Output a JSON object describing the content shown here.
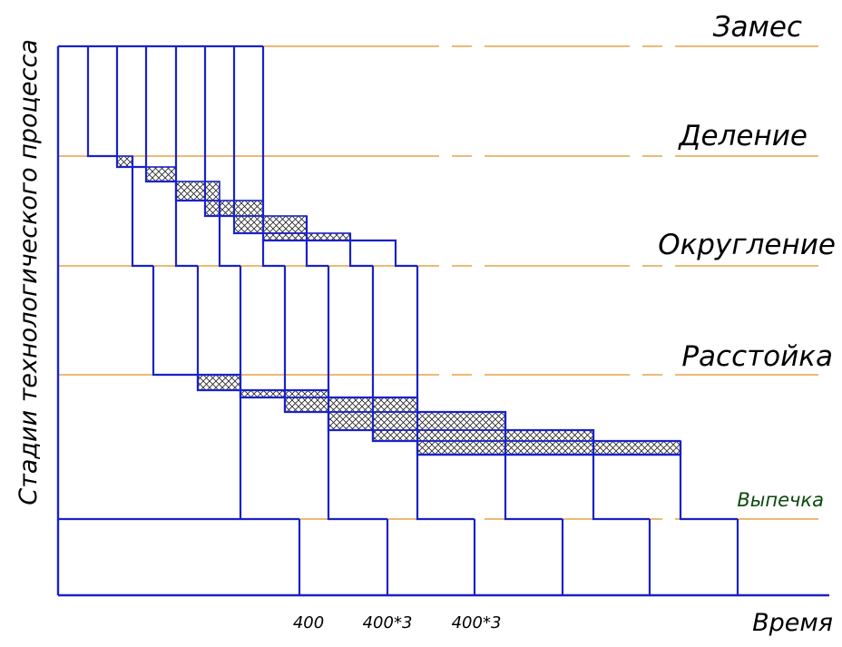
{
  "stages": {
    "zames": "Замес",
    "delenie": "Деление",
    "okruglenie": "Округление",
    "rasstoyka": "Расстойка",
    "vypechka": "Выпечка"
  },
  "axes": {
    "y_title": "Стадии технологического процесса",
    "x_title": "Время"
  },
  "ticks": [
    "400",
    "400*3",
    "400*3"
  ],
  "colors": {
    "lines": "#1a22c8",
    "guides": "#e09020",
    "stage_label_last": "#0c4a0c"
  }
}
